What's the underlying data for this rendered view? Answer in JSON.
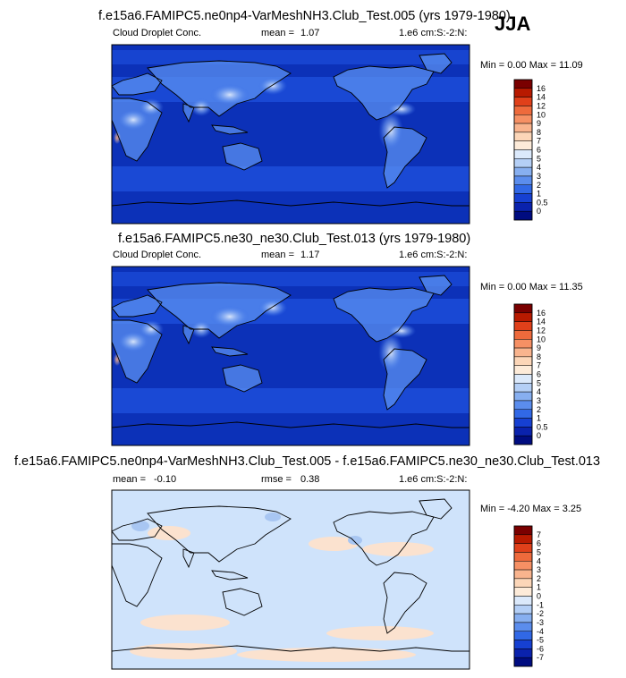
{
  "season": "JJA",
  "colors": {
    "ocean_deep": "#0c31b8",
    "ocean_mid": "#1f52df",
    "land_light": "#5a8ff0",
    "diff_base": "#cfe3fb",
    "diff_pos": "#fbe2cf",
    "coast": "#000000"
  },
  "chart_data": [
    {
      "type": "heatmap",
      "title": "f.e15a6.FAMIPC5.ne0np4-VarMeshNH3.Club_Test.005 (yrs 1979-1980)",
      "variable": "Cloud Droplet Conc.",
      "stat_label": "mean =",
      "stat_value": "1.07",
      "units": "1.e6 cm:S:-2:N:",
      "range_text": "Min =   0.00 Max =  11.09",
      "min": 0.0,
      "max": 11.09,
      "colorbar_ticks": [
        "16",
        "14",
        "12",
        "10",
        "9",
        "8",
        "7",
        "6",
        "5",
        "4",
        "3",
        "2",
        "1",
        "0.5",
        "0"
      ],
      "colorbar_colors": [
        "#7a0000",
        "#b81a00",
        "#e0401a",
        "#ee6a3c",
        "#f69064",
        "#f9b48e",
        "#fcd6b8",
        "#fdebd9",
        "#dbe9fb",
        "#b4cff6",
        "#87aff0",
        "#5b8ded",
        "#3168e6",
        "#1640d2",
        "#0a22ad",
        "#000c80"
      ]
    },
    {
      "type": "heatmap",
      "title": "f.e15a6.FAMIPC5.ne30_ne30.Club_Test.013 (yrs 1979-1980)",
      "variable": "Cloud Droplet Conc.",
      "stat_label": "mean =",
      "stat_value": "1.17",
      "units": "1.e6 cm:S:-2:N:",
      "range_text": "Min =   0.00 Max =  11.35",
      "min": 0.0,
      "max": 11.35,
      "colorbar_ticks": [
        "16",
        "14",
        "12",
        "10",
        "9",
        "8",
        "7",
        "6",
        "5",
        "4",
        "3",
        "2",
        "1",
        "0.5",
        "0"
      ],
      "colorbar_colors": [
        "#7a0000",
        "#b81a00",
        "#e0401a",
        "#ee6a3c",
        "#f69064",
        "#f9b48e",
        "#fcd6b8",
        "#fdebd9",
        "#dbe9fb",
        "#b4cff6",
        "#87aff0",
        "#5b8ded",
        "#3168e6",
        "#1640d2",
        "#0a22ad",
        "#000c80"
      ]
    },
    {
      "type": "heatmap",
      "title": "f.e15a6.FAMIPC5.ne0np4-VarMeshNH3.Club_Test.005 - f.e15a6.FAMIPC5.ne30_ne30.Club_Test.013",
      "variable": "",
      "stat_label": "mean =",
      "stat_value": "-0.10",
      "stat2_label": "rmse =",
      "stat2_value": "0.38",
      "units": "1.e6 cm:S:-2:N:",
      "range_text": "Min =  -4.20 Max =   3.25",
      "min": -4.2,
      "max": 3.25,
      "colorbar_ticks": [
        "7",
        "6",
        "5",
        "4",
        "3",
        "2",
        "1",
        "0",
        "-1",
        "-2",
        "-3",
        "-4",
        "-5",
        "-6",
        "-7"
      ],
      "colorbar_colors": [
        "#7a0000",
        "#b81a00",
        "#e0401a",
        "#ee6a3c",
        "#f69064",
        "#f9b48e",
        "#fcd6b8",
        "#fdebd9",
        "#dbe9fb",
        "#b4cff6",
        "#87aff0",
        "#5b8ded",
        "#3168e6",
        "#1640d2",
        "#0a22ad",
        "#000c80"
      ]
    }
  ]
}
